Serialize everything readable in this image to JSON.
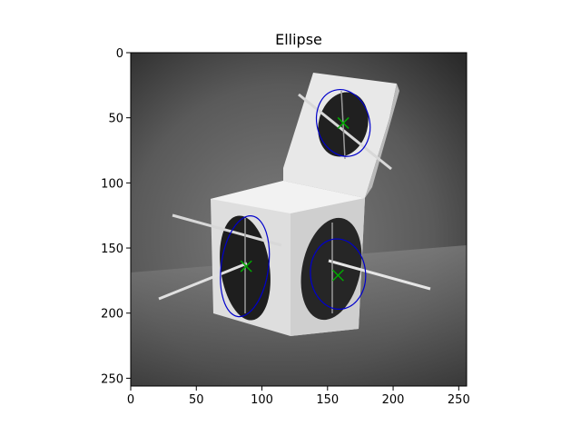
{
  "chart_data": {
    "type": "scatter",
    "title": "Ellipse",
    "xlabel": "",
    "ylabel": "",
    "xlim": [
      0,
      256
    ],
    "ylim": [
      256,
      0
    ],
    "y_axis_inverted": true,
    "grid": false,
    "xticks": [
      0,
      50,
      100,
      150,
      200,
      250
    ],
    "yticks": [
      0,
      50,
      100,
      150,
      200,
      250
    ],
    "background_image": "grayscale photo of two white cubes with dark circular markings and white rods",
    "series": [
      {
        "type": "ellipse",
        "color": "#0000cc",
        "ellipses": [
          {
            "cx": 162,
            "cy": 54,
            "rx": 20,
            "ry": 26,
            "angle": -15
          },
          {
            "cx": 87,
            "cy": 164,
            "rx": 18,
            "ry": 39,
            "angle": 8
          },
          {
            "cx": 158,
            "cy": 170,
            "rx": 21,
            "ry": 27,
            "angle": -5
          }
        ]
      },
      {
        "type": "marker",
        "marker": "x",
        "color": "#00aa00",
        "points": [
          {
            "x": 162,
            "y": 54
          },
          {
            "x": 88,
            "y": 164
          },
          {
            "x": 158,
            "y": 171
          }
        ]
      }
    ]
  }
}
